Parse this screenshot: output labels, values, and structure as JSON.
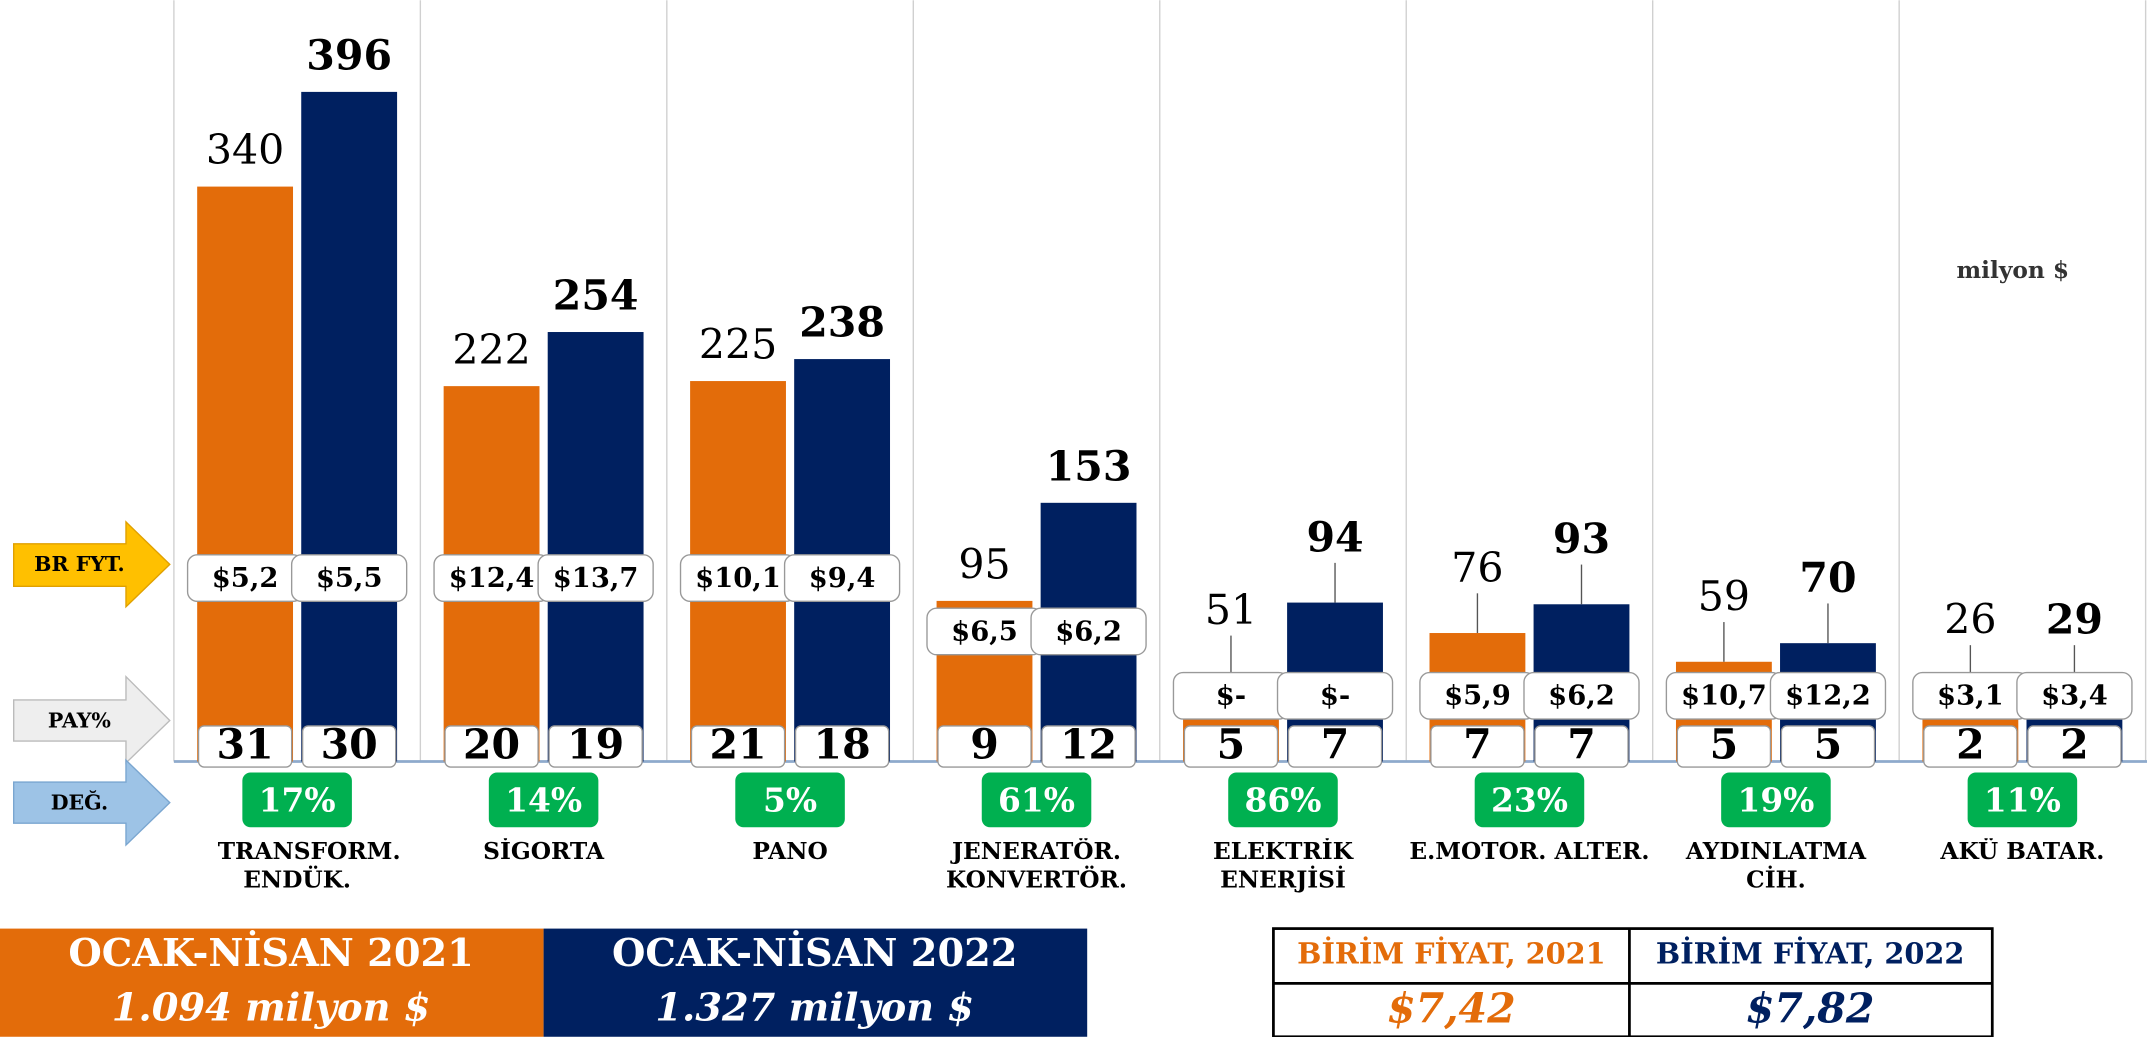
{
  "chart_data": {
    "type": "bar",
    "unit_label": "milyon $",
    "row_labels": [
      "BR FYT.",
      "PAY%",
      "DEĞ."
    ],
    "categories": [
      "TRANSFORM. ENDÜK.",
      "SİGORTA",
      "PANO",
      "JENERATÖR. KONVERTÖR.",
      "ELEKTRİK ENERJİSİ",
      "E.MOTOR. ALTER.",
      "AYDINLATMA CİH.",
      "AKÜ BATAR."
    ],
    "series": [
      {
        "name": "OCAK-NİSAN 2021",
        "total": "1.094 milyon $",
        "color": "#E36C0A",
        "values": [
          340,
          222,
          225,
          95,
          51,
          76,
          59,
          26
        ],
        "unit_prices": [
          "$5,2",
          "$12,4",
          "$10,1",
          "$6,5",
          "$-",
          "$5,9",
          "$10,7",
          "$3,1"
        ],
        "shares": [
          31,
          20,
          21,
          9,
          5,
          7,
          5,
          2
        ]
      },
      {
        "name": "OCAK-NİSAN 2022",
        "total": "1.327 milyon $",
        "color": "#002060",
        "values": [
          396,
          254,
          238,
          153,
          94,
          93,
          70,
          29
        ],
        "unit_prices": [
          "$5,5",
          "$13,7",
          "$9,4",
          "$6,2",
          "$-",
          "$6,2",
          "$12,2",
          "$3,4"
        ],
        "shares": [
          30,
          19,
          18,
          12,
          7,
          7,
          5,
          2
        ]
      }
    ],
    "change": [
      "17%",
      "14%",
      "5%",
      "61%",
      "86%",
      "23%",
      "19%",
      "11%"
    ],
    "unit_price_table": [
      {
        "header": "BİRİM FİYAT, 2021",
        "value": "$7,42"
      },
      {
        "header": "BİRİM FİYAT, 2022",
        "value": "$7,82"
      }
    ]
  }
}
